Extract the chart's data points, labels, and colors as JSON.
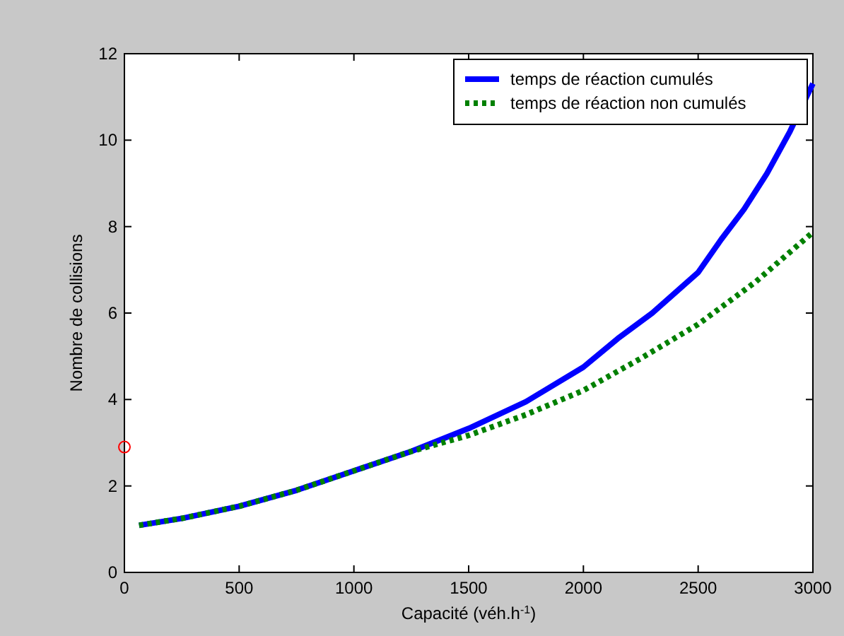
{
  "chart_data": {
    "type": "line",
    "xlabel": "Capacité (véh.h$^{-1}$)",
    "ylabel": "Nombre de collisions",
    "xlim": [
      0,
      3000
    ],
    "ylim": [
      0,
      12
    ],
    "xticks": [
      0,
      500,
      1000,
      1500,
      2000,
      2500,
      3000
    ],
    "yticks": [
      0,
      2,
      4,
      6,
      8,
      10,
      12
    ],
    "grid": false,
    "legend": "top right",
    "series": [
      {
        "name": "temps de réaction cumulés",
        "color": "#0000ff",
        "line_style": "solid",
        "x": [
          64,
          250,
          500,
          750,
          1000,
          1250,
          1500,
          1750,
          2000,
          2150,
          2300,
          2500,
          2600,
          2700,
          2800,
          2900,
          3000
        ],
        "values": [
          1.09,
          1.25,
          1.53,
          1.9,
          2.35,
          2.8,
          3.33,
          3.95,
          4.75,
          5.41,
          6.0,
          6.94,
          7.7,
          8.4,
          9.23,
          10.2,
          11.31
        ]
      },
      {
        "name": "temps de réaction non cumulés",
        "color": "#008000",
        "line_style": "dotted",
        "x": [
          64,
          250,
          500,
          750,
          1000,
          1250,
          1500,
          1750,
          2000,
          2250,
          2500,
          2750,
          3000
        ],
        "values": [
          1.09,
          1.25,
          1.53,
          1.9,
          2.35,
          2.8,
          3.17,
          3.65,
          4.21,
          4.95,
          5.74,
          6.72,
          7.87
        ]
      },
      {
        "type": "scatter",
        "color": "#ff0000",
        "marker": "circle",
        "x": [
          0
        ],
        "values": [
          2.9
        ]
      }
    ]
  }
}
